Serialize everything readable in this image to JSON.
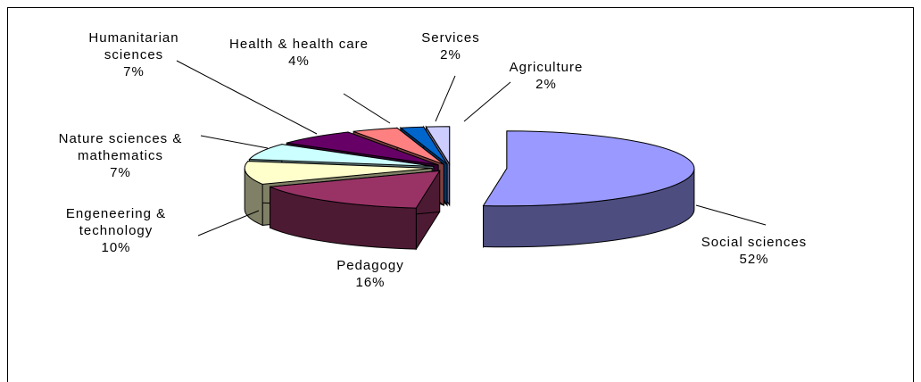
{
  "chart_data": {
    "type": "pie",
    "categories": [
      "Social sciences",
      "Pedagogy",
      "Engeneering & technology",
      "Nature sciences & mathematics",
      "Humanitarian sciences",
      "Health & health care",
      "Services",
      "Agriculture"
    ],
    "values": [
      52,
      16,
      10,
      7,
      7,
      4,
      2,
      2
    ],
    "value_labels": [
      "52%",
      "16%",
      "10%",
      "7%",
      "7%",
      "4%",
      "2%",
      "2%"
    ],
    "colors": [
      "#9999ff",
      "#993366",
      "#ffffcc",
      "#ccffff",
      "#660066",
      "#ff8080",
      "#0066cc",
      "#ccccff"
    ]
  }
}
